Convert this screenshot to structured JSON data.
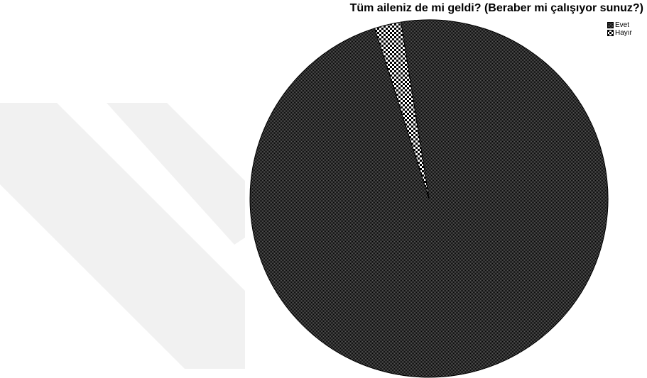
{
  "chart_data": {
    "type": "pie",
    "title": "Tüm aileniz de mi geldi? (Beraber mi çalışıyor sunuz?)",
    "categories": [
      "Evet",
      "Hayır"
    ],
    "values": [
      97.6,
      2.4
    ],
    "legend": {
      "position": "top-right",
      "entries": [
        "Evet",
        "Hayır"
      ]
    },
    "start_angle_deg": -9.0,
    "colors": {
      "evet_fg": "#000000",
      "evet_bg": "#5a5a5a",
      "hayir_fg": "#000000",
      "hayir_bg": "#ffffff",
      "watermark": "#f1f1f1"
    }
  }
}
